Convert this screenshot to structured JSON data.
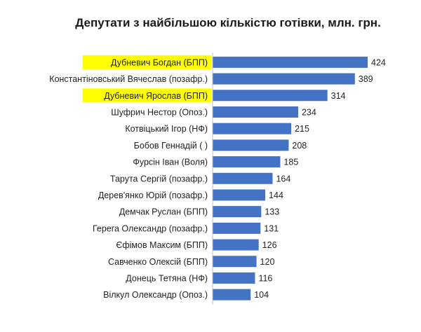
{
  "chart_data": {
    "type": "bar",
    "orientation": "horizontal",
    "title": "Депутати з найбільшою кількістю готівки, млн. грн.",
    "categories": [
      "Дубневич Богдан (БПП)",
      "Константіновський Вячеслав (позафр.)",
      "Дубневич Ярослав (БПП)",
      "Шуфрич Нестор (Опоз.)",
      "Котвіцький Ігор (НФ)",
      "Бобов Геннадій (   )",
      "Фурсін Іван (Воля)",
      "Тарута Сергій (позафр.)",
      "Дерев'янко Юрій (позафр.)",
      "Демчак Руслан (БПП)",
      "Герега Олександр (позафр.)",
      "Єфімов Максим (БПП)",
      "Савченко Олексій (БПП)",
      "Донець Тетяна (НФ)",
      "Вілкул Олександр (Опоз.)"
    ],
    "values": [
      424,
      389,
      314,
      234,
      215,
      208,
      185,
      164,
      144,
      133,
      131,
      126,
      120,
      116,
      104
    ],
    "highlighted": [
      0,
      2
    ],
    "xlim": [
      0,
      424
    ],
    "grid": false,
    "legend": "none",
    "bar_color": "#4472c4",
    "highlight_color": "#ffff00",
    "axis_color": "#bfbfbf"
  }
}
